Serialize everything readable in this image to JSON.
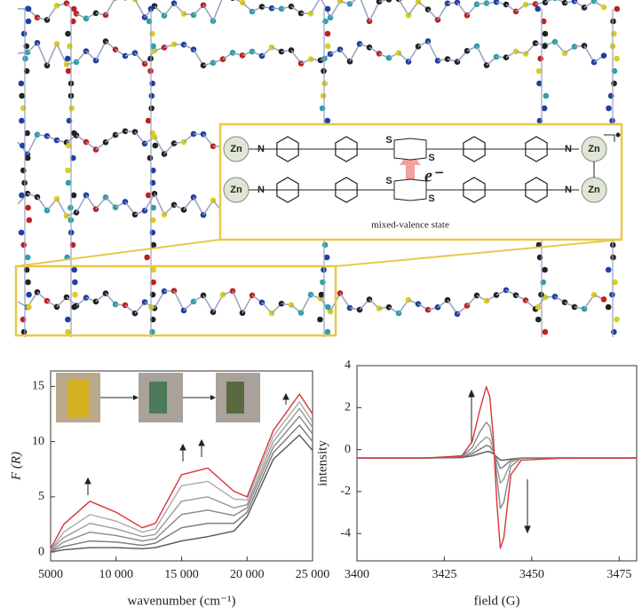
{
  "inset": {
    "metal": "Zn",
    "nitrogen": "N",
    "sulfur": "S",
    "electron": "e⁻",
    "caption": "mixed-valence state"
  },
  "chart_data": [
    {
      "type": "line",
      "xlabel": "wavenumber (cm⁻¹)",
      "ylabel": "F (R)",
      "x": [
        5000,
        6000,
        8000,
        10000,
        12000,
        13000,
        15000,
        17000,
        19000,
        20000,
        22000,
        24000,
        25000
      ],
      "series": [
        {
          "color": "#555555",
          "values": [
            0,
            0.2,
            0.4,
            0.4,
            0.3,
            0.4,
            1.0,
            1.4,
            1.9,
            3.2,
            8.4,
            10.6,
            9.2
          ]
        },
        {
          "color": "#777777",
          "values": [
            0.1,
            0.5,
            1.0,
            0.9,
            0.6,
            0.8,
            2.2,
            2.6,
            2.6,
            3.6,
            9,
            11.5,
            10
          ]
        },
        {
          "color": "#888888",
          "values": [
            0.1,
            0.9,
            1.8,
            1.5,
            1.0,
            1.2,
            3.4,
            3.8,
            3.3,
            4.0,
            9.5,
            12.3,
            10.7
          ]
        },
        {
          "color": "#999999",
          "values": [
            0.2,
            1.3,
            2.6,
            2.1,
            1.4,
            1.6,
            4.6,
            5.0,
            4.0,
            4.3,
            10,
            13,
            11.3
          ]
        },
        {
          "color": "#aaaaaa",
          "values": [
            0.2,
            1.8,
            3.4,
            2.8,
            1.8,
            2.1,
            6.0,
            6.4,
            4.8,
            4.7,
            10.5,
            13.6,
            11.8
          ]
        },
        {
          "color": "#d9343a",
          "values": [
            0.3,
            2.5,
            4.6,
            3.6,
            2.2,
            2.6,
            7.0,
            7.6,
            5.5,
            5.0,
            11,
            14.3,
            12.5
          ]
        }
      ],
      "xlim": [
        5000,
        25000
      ],
      "xticks": [
        5000,
        {
          "value": 10000,
          "label": "10 000"
        },
        {
          "value": 15000,
          "label": "15 000"
        },
        {
          "value": 20000,
          "label": "20 000"
        },
        {
          "value": 25000,
          "label": "25 000"
        }
      ],
      "ylim": [
        -0.8,
        16.4
      ],
      "yticks": [
        0,
        5,
        10,
        15
      ],
      "grid": false
    },
    {
      "type": "line",
      "xlabel": "field (G)",
      "ylabel": "intensity",
      "x": [
        3400,
        3420,
        3430,
        3433,
        3435,
        3437,
        3438,
        3439,
        3440,
        3441,
        3442,
        3444,
        3447,
        3460,
        3480
      ],
      "series": [
        {
          "color": "#555555",
          "values": [
            -0.4,
            -0.4,
            -0.38,
            -0.3,
            -0.2,
            -0.1,
            -0.1,
            -0.2,
            -0.35,
            -0.5,
            -0.5,
            -0.45,
            -0.4,
            -0.4,
            -0.4
          ]
        },
        {
          "color": "#777777",
          "values": [
            -0.4,
            -0.4,
            -0.35,
            -0.2,
            0,
            0.2,
            0.15,
            -0.1,
            -0.5,
            -0.9,
            -0.8,
            -0.5,
            -0.4,
            -0.4,
            -0.4
          ]
        },
        {
          "color": "#999999",
          "values": [
            -0.4,
            -0.4,
            -0.3,
            -0.1,
            0.3,
            0.6,
            0.5,
            0,
            -0.8,
            -1.6,
            -1.4,
            -0.6,
            -0.4,
            -0.4,
            -0.4
          ]
        },
        {
          "color": "#888888",
          "values": [
            -0.4,
            -0.4,
            -0.3,
            0.1,
            0.8,
            1.3,
            1.1,
            0.2,
            -1.3,
            -2.8,
            -2.5,
            -0.8,
            -0.4,
            -0.4,
            -0.4
          ]
        },
        {
          "color": "#d9343a",
          "values": [
            -0.4,
            -0.4,
            -0.3,
            0.4,
            1.8,
            3.0,
            2.5,
            0.6,
            -2.5,
            -4.7,
            -4.2,
            -1.2,
            -0.5,
            -0.4,
            -0.4
          ]
        }
      ],
      "xlim": [
        3400,
        3480
      ],
      "xticks": [
        3400,
        3425,
        3450,
        3475
      ],
      "ylim": [
        -5.3,
        4
      ],
      "yticks": [
        -4,
        -2,
        0,
        2,
        4
      ],
      "grid": false
    }
  ]
}
